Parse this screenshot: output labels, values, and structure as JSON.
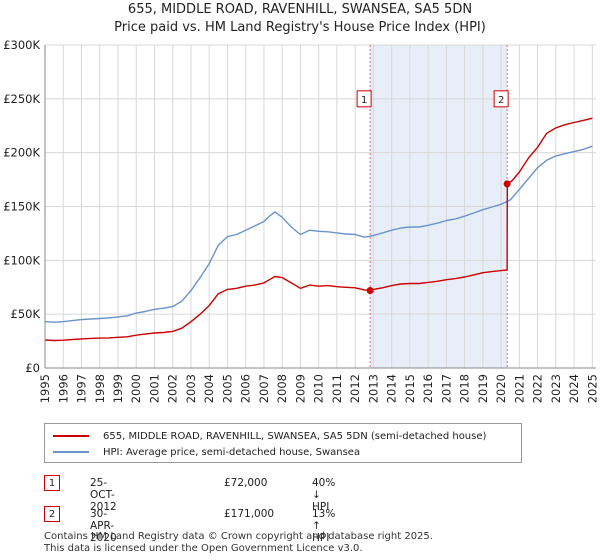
{
  "title_line1": "655, MIDDLE ROAD, RAVENHILL, SWANSEA, SA5 5DN",
  "title_line2": "Price paid vs. HM Land Registry's House Price Index (HPI)",
  "colors": {
    "property": "#cc0000",
    "hpi": "#6b93cb",
    "shade": "#e8eef8",
    "grid": "#d8d8d8",
    "vline": "#dd6677"
  },
  "legend": {
    "property_label": "655, MIDDLE ROAD, RAVENHILL, SWANSEA, SA5 5DN (semi-detached house)",
    "hpi_label": "HPI: Average price, semi-detached house, Swansea"
  },
  "annotations": [
    {
      "id": "1",
      "date": "25-OCT-2012",
      "price": "£72,000",
      "hpi_change": "40% ↓ HPI"
    },
    {
      "id": "2",
      "date": "30-APR-2020",
      "price": "£171,000",
      "hpi_change": "13% ↑ HPI"
    }
  ],
  "footer_line1": "Contains HM Land Registry data © Crown copyright and database right 2025.",
  "footer_line2": "This data is licensed under the Open Government Licence v3.0.",
  "chart_data": {
    "type": "line",
    "title": "655, MIDDLE ROAD, RAVENHILL, SWANSEA, SA5 5DN",
    "subtitle": "Price paid vs. HM Land Registry's House Price Index (HPI)",
    "xlabel": "",
    "ylabel": "",
    "xlim": [
      1995,
      2025.2
    ],
    "ylim": [
      0,
      300000
    ],
    "y_ticks": [
      0,
      50000,
      100000,
      150000,
      200000,
      250000,
      300000
    ],
    "y_tick_labels": [
      "£0",
      "£50K",
      "£100K",
      "£150K",
      "£200K",
      "£250K",
      "£300K"
    ],
    "x_ticks": [
      1995,
      1996,
      1997,
      1998,
      1999,
      2000,
      2001,
      2002,
      2003,
      2004,
      2005,
      2006,
      2007,
      2008,
      2009,
      2010,
      2011,
      2012,
      2013,
      2014,
      2015,
      2016,
      2017,
      2018,
      2019,
      2020,
      2021,
      2022,
      2023,
      2024,
      2025
    ],
    "x_tick_labels": [
      "1995",
      "1996",
      "1997",
      "1998",
      "1999",
      "2000",
      "2001",
      "2002",
      "2003",
      "2004",
      "2005",
      "2006",
      "2007",
      "2008",
      "2009",
      "2010",
      "2011",
      "2012",
      "2013",
      "2014",
      "2015",
      "2016",
      "2017",
      "2018",
      "2019",
      "2020",
      "2021",
      "2022",
      "2023",
      "2024",
      "2025"
    ],
    "shaded_period": [
      2012.82,
      2020.33
    ],
    "sales": [
      {
        "label": "1",
        "x": 2012.82,
        "y": 72000
      },
      {
        "label": "2",
        "x": 2020.33,
        "y": 171000
      }
    ],
    "marker_box_y": 250000,
    "grid": true,
    "series": [
      {
        "name": "655, MIDDLE ROAD, RAVENHILL, SWANSEA, SA5 5DN (semi-detached house)",
        "color": "#cc0000",
        "x": [
          1995,
          1995.5,
          1996,
          1996.5,
          1997,
          1997.5,
          1998,
          1998.5,
          1999,
          1999.5,
          2000,
          2000.5,
          2001,
          2001.5,
          2002,
          2002.5,
          2003,
          2003.5,
          2004,
          2004.5,
          2005,
          2005.5,
          2006,
          2006.5,
          2007,
          2007.3,
          2007.6,
          2008,
          2008.5,
          2009,
          2009.5,
          2010,
          2010.5,
          2011,
          2011.5,
          2012,
          2012.5,
          2012.82,
          2013,
          2013.5,
          2014,
          2014.5,
          2015,
          2015.5,
          2016,
          2016.5,
          2017,
          2017.5,
          2018,
          2018.5,
          2019,
          2019.5,
          2020,
          2020.33,
          2020.34,
          2020.6,
          2021,
          2021.5,
          2022,
          2022.5,
          2023,
          2023.5,
          2024,
          2024.5,
          2025
        ],
        "y": [
          26000,
          25500,
          25800,
          26500,
          27000,
          27500,
          27800,
          28000,
          28500,
          29000,
          30500,
          31500,
          32500,
          33000,
          34000,
          37000,
          43000,
          50000,
          58000,
          69000,
          73000,
          74000,
          76000,
          77000,
          79000,
          82000,
          85000,
          84000,
          79000,
          74000,
          77000,
          76000,
          76500,
          75500,
          75000,
          74500,
          72500,
          72000,
          73000,
          74500,
          76500,
          78000,
          78500,
          78500,
          79500,
          80500,
          82000,
          83000,
          84500,
          86500,
          88500,
          89500,
          90500,
          91000,
          171000,
          174000,
          182000,
          195000,
          205000,
          218000,
          223000,
          226000,
          228000,
          230000,
          232000
        ]
      },
      {
        "name": "HPI: Average price, semi-detached house, Swansea",
        "color": "#6b93cb",
        "x": [
          1995,
          1995.5,
          1996,
          1996.5,
          1997,
          1997.5,
          1998,
          1998.5,
          1999,
          1999.5,
          2000,
          2000.5,
          2001,
          2001.5,
          2002,
          2002.5,
          2003,
          2003.5,
          2004,
          2004.5,
          2005,
          2005.5,
          2006,
          2006.5,
          2007,
          2007.3,
          2007.6,
          2008,
          2008.5,
          2009,
          2009.5,
          2010,
          2010.5,
          2011,
          2011.5,
          2012,
          2012.5,
          2013,
          2013.5,
          2014,
          2014.5,
          2015,
          2015.5,
          2016,
          2016.5,
          2017,
          2017.5,
          2018,
          2018.5,
          2019,
          2019.5,
          2020,
          2020.5,
          2021,
          2021.5,
          2022,
          2022.5,
          2023,
          2023.5,
          2024,
          2024.5,
          2025
        ],
        "y": [
          43000,
          42500,
          43000,
          44000,
          45000,
          45500,
          46000,
          46500,
          47500,
          48500,
          51000,
          52500,
          54500,
          55500,
          57000,
          62000,
          72000,
          84000,
          97000,
          114000,
          122000,
          124000,
          128000,
          132000,
          136000,
          141000,
          145000,
          140000,
          131000,
          124000,
          128000,
          127000,
          126500,
          125500,
          124500,
          124000,
          121500,
          123000,
          125500,
          128000,
          130000,
          131000,
          131000,
          132500,
          134500,
          137000,
          138500,
          141000,
          144000,
          147000,
          149500,
          152000,
          156000,
          166000,
          176000,
          186000,
          193000,
          197000,
          199000,
          201000,
          203000,
          206000
        ]
      }
    ]
  }
}
